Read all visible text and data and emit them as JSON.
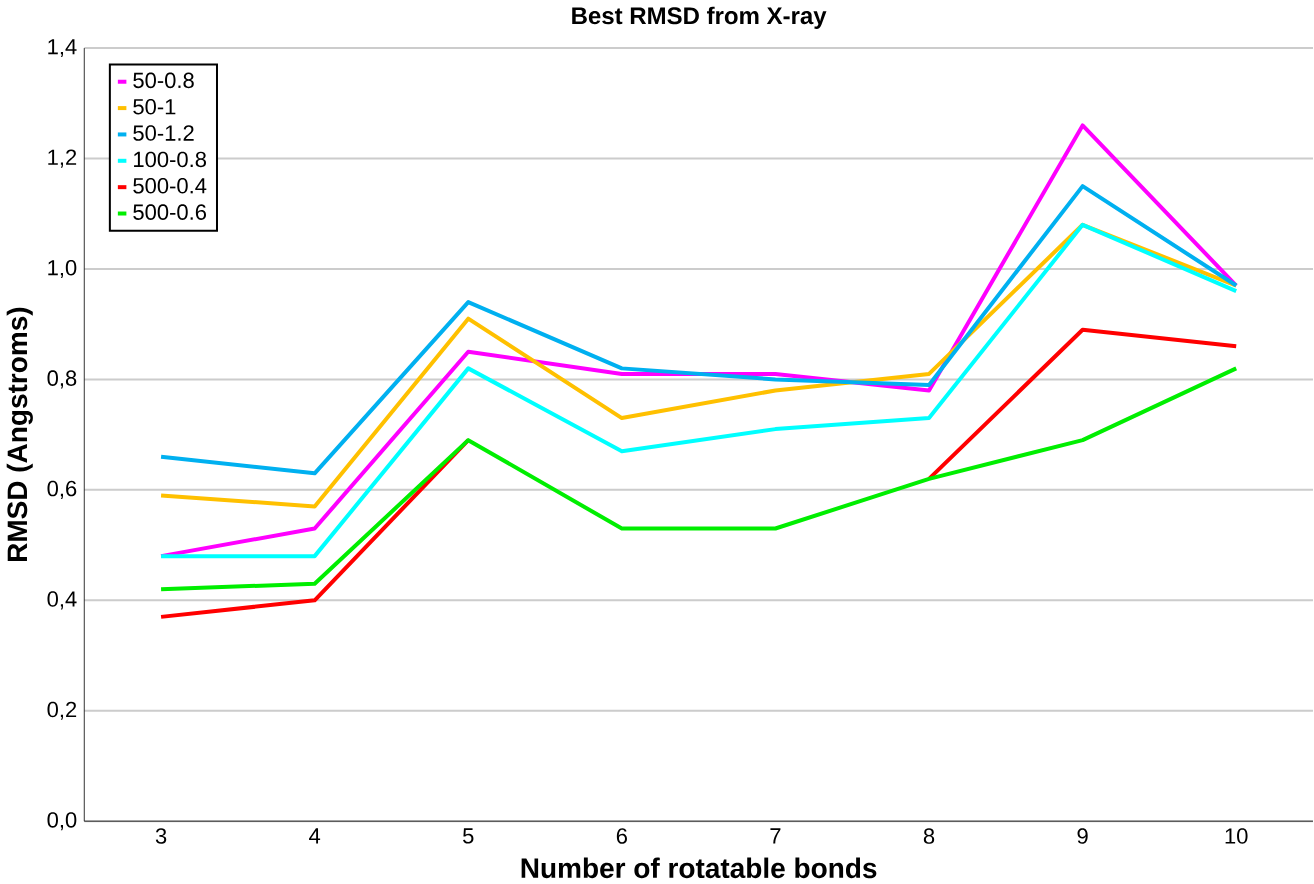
{
  "chart_data": {
    "type": "line",
    "title": "Best RMSD from X-ray",
    "xlabel": "Number of rotatable bonds",
    "ylabel": "RMSD (Angstroms)",
    "categories": [
      "3",
      "4",
      "5",
      "6",
      "7",
      "8",
      "9",
      "10"
    ],
    "series": [
      {
        "name": "50-0.8",
        "color": "#ff00ff",
        "values": [
          0.48,
          0.53,
          0.85,
          0.81,
          0.81,
          0.78,
          1.26,
          0.97
        ]
      },
      {
        "name": "50-1",
        "color": "#ffc000",
        "values": [
          0.59,
          0.57,
          0.91,
          0.73,
          0.78,
          0.81,
          1.08,
          0.97
        ]
      },
      {
        "name": "50-1.2",
        "color": "#00b0f0",
        "values": [
          0.66,
          0.63,
          0.94,
          0.82,
          0.8,
          0.79,
          1.15,
          0.97
        ]
      },
      {
        "name": "100-0.8",
        "color": "#00ffff",
        "values": [
          0.48,
          0.48,
          0.82,
          0.67,
          0.71,
          0.73,
          1.08,
          0.96
        ]
      },
      {
        "name": "500-0.4",
        "color": "#ff0000",
        "values": [
          0.37,
          0.4,
          0.69,
          null,
          null,
          0.62,
          0.89,
          0.86
        ]
      },
      {
        "name": "500-0.6",
        "color": "#00ee00",
        "values": [
          0.42,
          0.43,
          0.69,
          0.53,
          0.53,
          0.62,
          0.69,
          0.82
        ]
      }
    ],
    "ylim": [
      0,
      1.4
    ],
    "yticks": [
      {
        "value": 0,
        "label": "0,0"
      },
      {
        "value": 0.2,
        "label": "0,2"
      },
      {
        "value": 0.4,
        "label": "0,4"
      },
      {
        "value": 0.6,
        "label": "0,6"
      },
      {
        "value": 0.8,
        "label": "0,8"
      },
      {
        "value": 1.0,
        "label": "1,0"
      },
      {
        "value": 1.2,
        "label": "1,2"
      },
      {
        "value": 1.4,
        "label": "1,4"
      }
    ],
    "grid": "y",
    "legend": "top left",
    "marker": "none",
    "line_style": "solid"
  }
}
